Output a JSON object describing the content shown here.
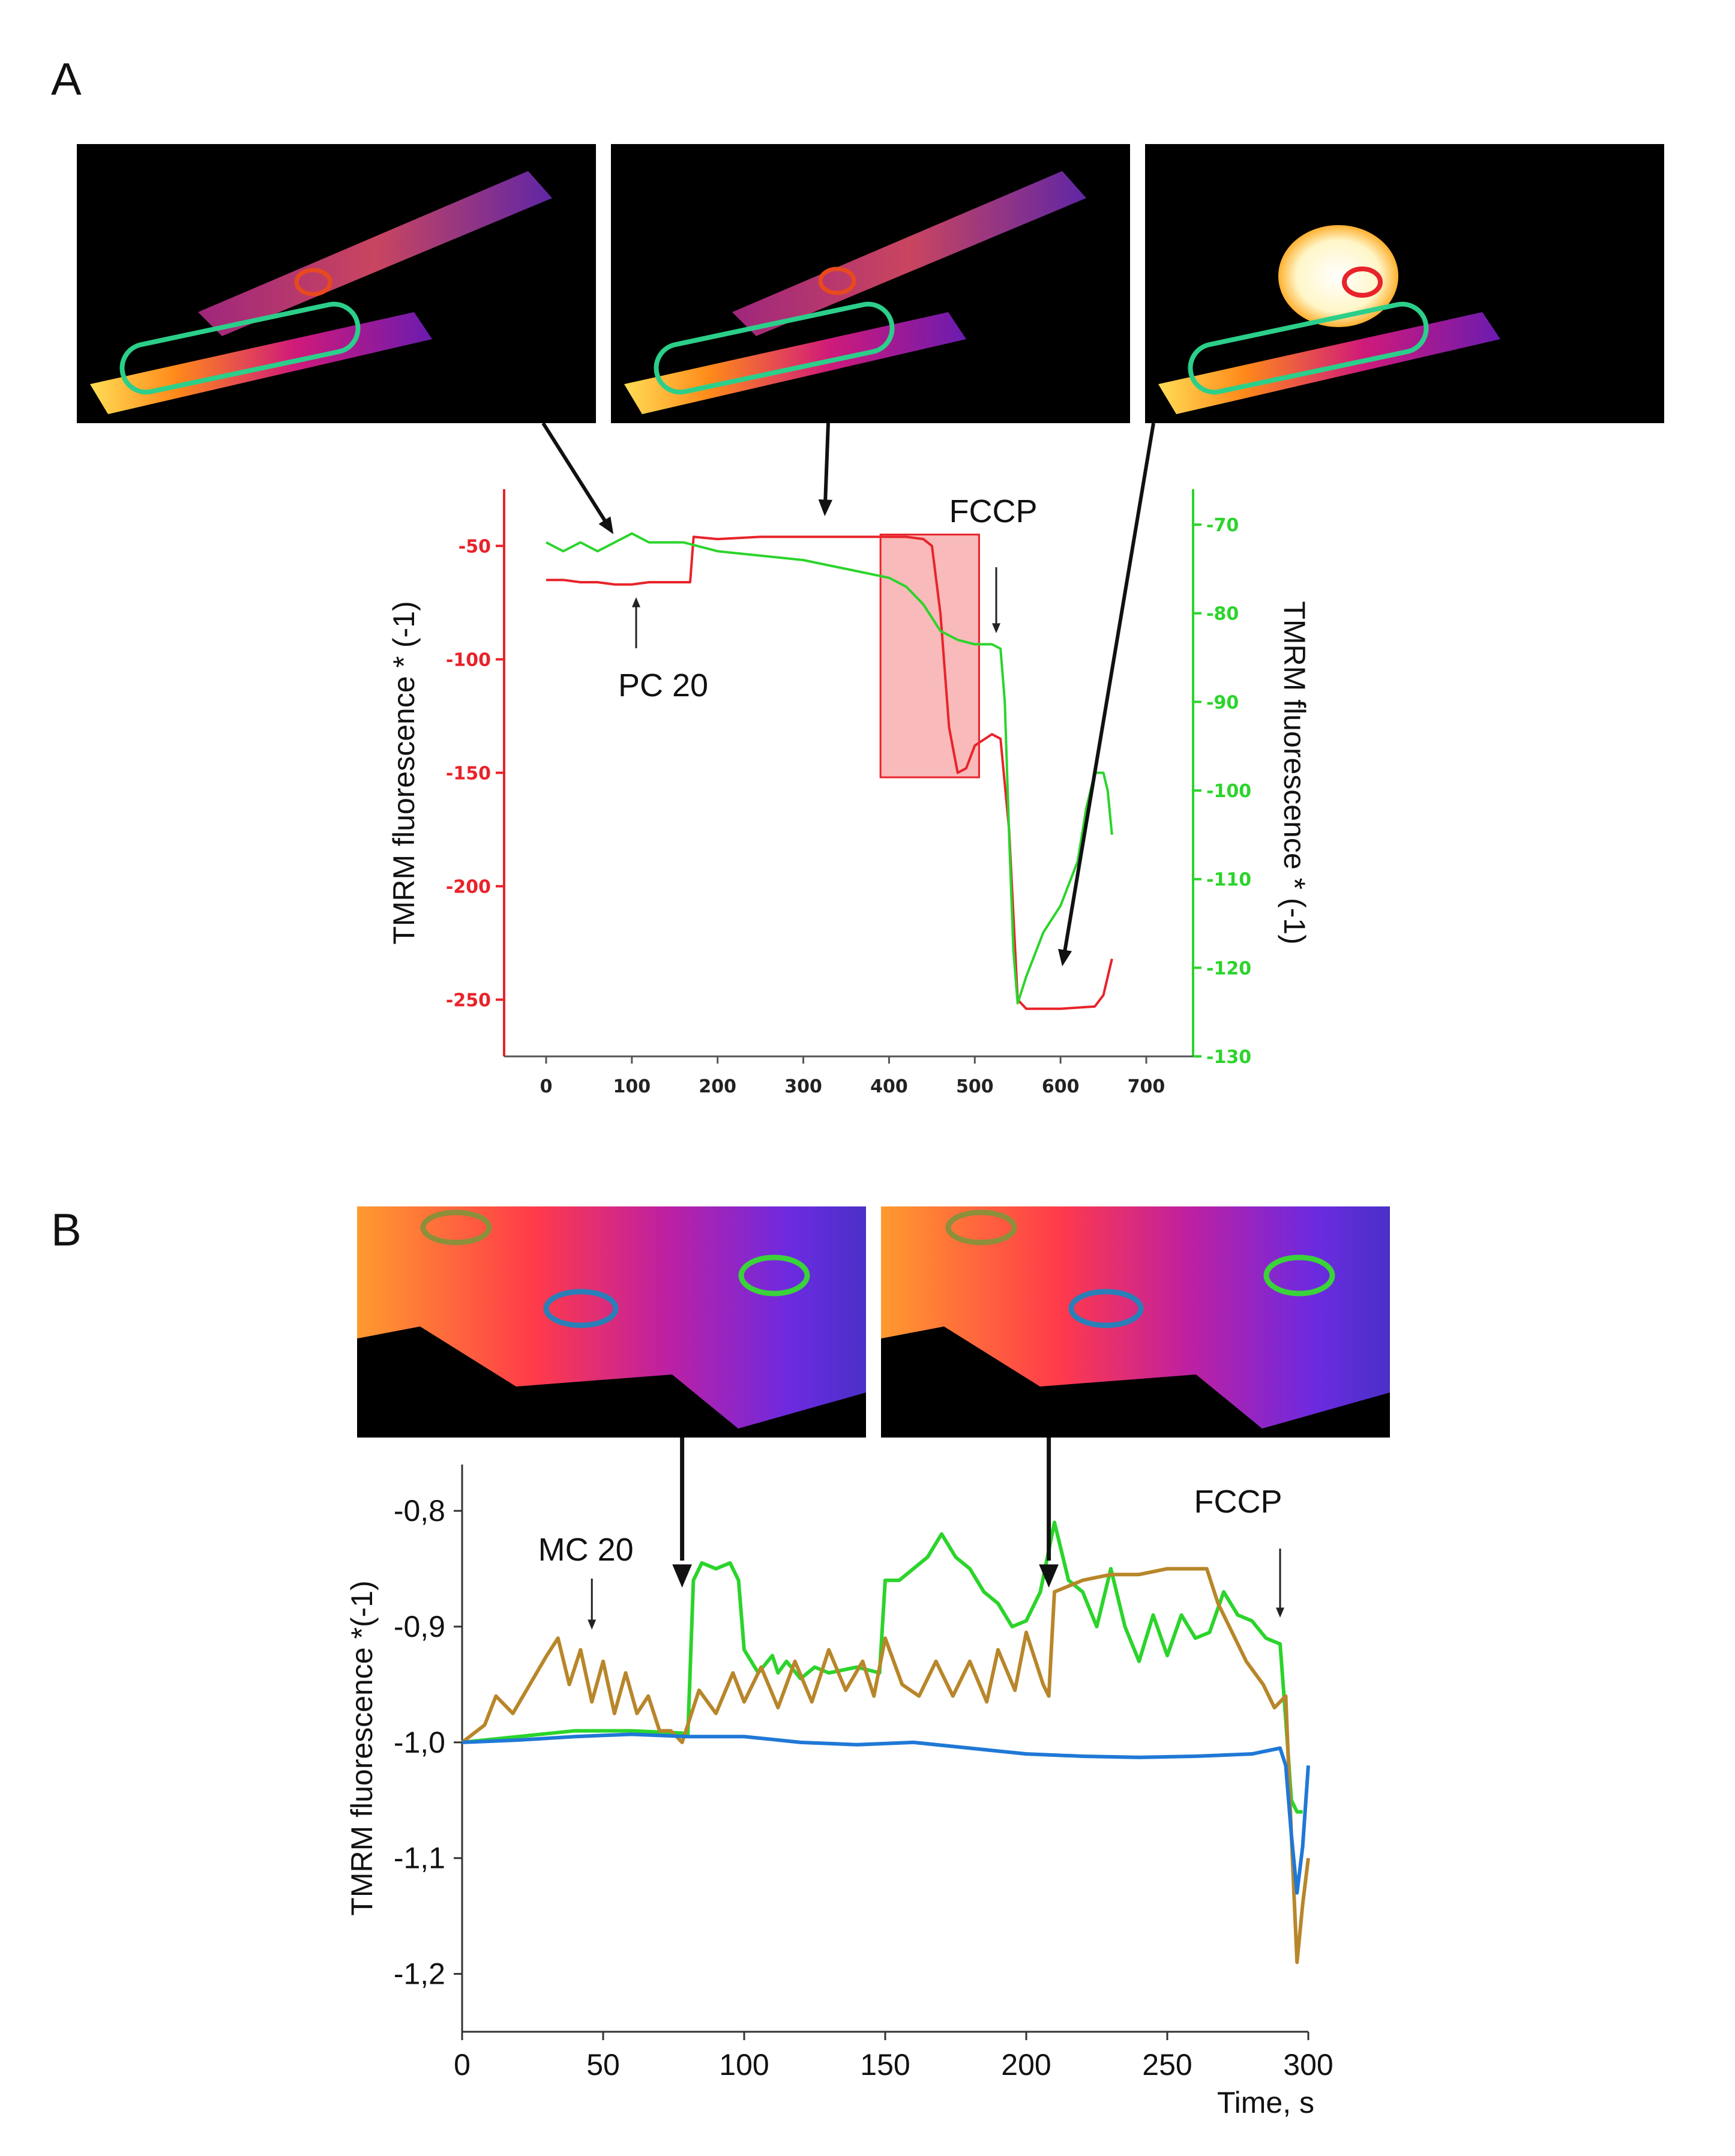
{
  "panels": {
    "a": {
      "label": "A"
    },
    "b": {
      "label": "B"
    }
  },
  "colors": {
    "red": "#e8232a",
    "green": "#2bd42b",
    "teal": "#2bcf8a",
    "blue": "#1f78d6",
    "brown": "#b8862a",
    "highlight": "#f6a3a3"
  },
  "chart_data": [
    {
      "id": "panel-a",
      "type": "line",
      "title": "",
      "xlabel": "",
      "ylabel_left": "TMRM fluorescence * (-1)",
      "ylabel_right": "TMRM fluorescence * (-1)",
      "x_ticks": [
        0,
        100,
        200,
        300,
        400,
        500,
        600,
        700
      ],
      "xlim": [
        -50,
        750
      ],
      "left_axis": {
        "ticks": [
          -50,
          -100,
          -150,
          -200,
          -250
        ],
        "ylim": [
          -275,
          -25
        ]
      },
      "right_axis": {
        "ticks": [
          -70,
          -80,
          -90,
          -100,
          -110,
          -120,
          -130
        ],
        "ylim": [
          -130,
          -66
        ]
      },
      "series": [
        {
          "name": "red ROI (left axis)",
          "axis": "left",
          "color": "#e8232a",
          "x": [
            0,
            20,
            40,
            60,
            80,
            100,
            120,
            140,
            160,
            168,
            172,
            200,
            250,
            300,
            350,
            380,
            420,
            440,
            450,
            460,
            470,
            480,
            490,
            500,
            520,
            530,
            540,
            550,
            560,
            600,
            640,
            650,
            660
          ],
          "y": [
            -65,
            -65,
            -66,
            -66,
            -67,
            -67,
            -66,
            -66,
            -66,
            -66,
            -46,
            -47,
            -46,
            -46,
            -46,
            -46,
            -46,
            -47,
            -50,
            -80,
            -130,
            -150,
            -148,
            -138,
            -133,
            -135,
            -175,
            -250,
            -254,
            -254,
            -253,
            -248,
            -232
          ]
        },
        {
          "name": "green ROI (right axis)",
          "axis": "right",
          "color": "#2bd42b",
          "x": [
            0,
            20,
            40,
            60,
            80,
            100,
            120,
            140,
            160,
            200,
            250,
            300,
            350,
            400,
            420,
            440,
            460,
            480,
            500,
            520,
            530,
            535,
            540,
            545,
            550,
            560,
            580,
            600,
            620,
            630,
            640,
            650,
            655,
            660
          ],
          "y": [
            -72,
            -73,
            -72,
            -73,
            -72,
            -71,
            -72,
            -72,
            -72,
            -73,
            -73.5,
            -74,
            -75,
            -76,
            -77,
            -79,
            -82,
            -83,
            -83.5,
            -83.5,
            -84,
            -90,
            -105,
            -118,
            -124,
            -121,
            -116,
            -113,
            -108,
            -102,
            -98,
            -98,
            -100,
            -105
          ]
        }
      ],
      "annotations": [
        {
          "text": "PC 20",
          "x": 105
        },
        {
          "text": "FCCP",
          "x": 525
        }
      ],
      "highlight_region": {
        "x_start": 390,
        "x_end": 505,
        "y_top": -45,
        "y_bottom": -152
      },
      "image_pointers_x": [
        75,
        325,
        595
      ]
    },
    {
      "id": "panel-b",
      "type": "line",
      "title": "",
      "xlabel": "Time, s",
      "ylabel": "TMRM fluorescence *(-1)",
      "x_ticks": [
        0,
        50,
        100,
        150,
        200,
        250,
        300
      ],
      "xlim": [
        0,
        300
      ],
      "y_ticks": [
        "-0,8",
        "-0,9",
        "-1,0",
        "-1,1",
        "-1,2"
      ],
      "y_tick_values": [
        -0.8,
        -0.9,
        -1.0,
        -1.1,
        -1.2
      ],
      "ylim": [
        -1.25,
        -0.76
      ],
      "series": [
        {
          "name": "green ROI",
          "color": "#2bd42b",
          "x": [
            0,
            20,
            40,
            60,
            78,
            80,
            82,
            85,
            90,
            95,
            98,
            100,
            105,
            110,
            112,
            115,
            120,
            125,
            130,
            140,
            148,
            150,
            155,
            160,
            165,
            170,
            175,
            180,
            185,
            190,
            195,
            200,
            205,
            210,
            215,
            220,
            225,
            230,
            235,
            240,
            245,
            250,
            255,
            260,
            265,
            270,
            275,
            280,
            285,
            290,
            292,
            294,
            296,
            298
          ],
          "y": [
            -1.0,
            -0.995,
            -0.99,
            -0.99,
            -0.992,
            -0.995,
            -0.86,
            -0.845,
            -0.85,
            -0.845,
            -0.86,
            -0.92,
            -0.94,
            -0.925,
            -0.94,
            -0.93,
            -0.945,
            -0.935,
            -0.94,
            -0.935,
            -0.94,
            -0.86,
            -0.86,
            -0.85,
            -0.84,
            -0.82,
            -0.84,
            -0.85,
            -0.87,
            -0.88,
            -0.9,
            -0.895,
            -0.87,
            -0.81,
            -0.86,
            -0.87,
            -0.9,
            -0.85,
            -0.9,
            -0.93,
            -0.89,
            -0.925,
            -0.89,
            -0.91,
            -0.905,
            -0.87,
            -0.89,
            -0.895,
            -0.91,
            -0.915,
            -0.98,
            -1.05,
            -1.06,
            -1.06
          ]
        },
        {
          "name": "brown ROI",
          "color": "#b8862a",
          "x": [
            0,
            8,
            12,
            18,
            24,
            30,
            34,
            38,
            42,
            46,
            50,
            54,
            58,
            62,
            66,
            70,
            74,
            78,
            80,
            84,
            90,
            96,
            100,
            106,
            112,
            118,
            124,
            130,
            136,
            142,
            146,
            150,
            156,
            162,
            168,
            174,
            180,
            186,
            190,
            196,
            200,
            206,
            208,
            210,
            220,
            230,
            240,
            250,
            260,
            264,
            268,
            272,
            278,
            284,
            288,
            292,
            294,
            296,
            298,
            300
          ],
          "y": [
            -1.0,
            -0.985,
            -0.96,
            -0.975,
            -0.95,
            -0.925,
            -0.91,
            -0.95,
            -0.92,
            -0.965,
            -0.93,
            -0.975,
            -0.94,
            -0.975,
            -0.96,
            -0.99,
            -0.99,
            -1.0,
            -0.985,
            -0.955,
            -0.975,
            -0.94,
            -0.965,
            -0.935,
            -0.97,
            -0.93,
            -0.965,
            -0.92,
            -0.955,
            -0.93,
            -0.96,
            -0.91,
            -0.95,
            -0.96,
            -0.93,
            -0.96,
            -0.93,
            -0.965,
            -0.92,
            -0.955,
            -0.905,
            -0.95,
            -0.96,
            -0.87,
            -0.86,
            -0.855,
            -0.855,
            -0.85,
            -0.85,
            -0.85,
            -0.88,
            -0.9,
            -0.93,
            -0.95,
            -0.97,
            -0.96,
            -1.08,
            -1.19,
            -1.14,
            -1.1
          ]
        },
        {
          "name": "blue ROI",
          "color": "#1f78d6",
          "x": [
            0,
            20,
            40,
            60,
            80,
            100,
            120,
            140,
            160,
            180,
            200,
            220,
            240,
            260,
            280,
            290,
            292,
            294,
            296,
            298,
            300
          ],
          "y": [
            -1.0,
            -0.998,
            -0.995,
            -0.993,
            -0.995,
            -0.995,
            -1.0,
            -1.002,
            -1.0,
            -1.005,
            -1.01,
            -1.012,
            -1.013,
            -1.012,
            -1.01,
            -1.005,
            -1.02,
            -1.08,
            -1.13,
            -1.09,
            -1.02
          ]
        }
      ],
      "annotations": [
        {
          "text": "MC 20",
          "x": 46
        },
        {
          "text": "FCCP",
          "x": 290
        }
      ],
      "image_pointers_x": [
        78,
        208
      ]
    }
  ]
}
